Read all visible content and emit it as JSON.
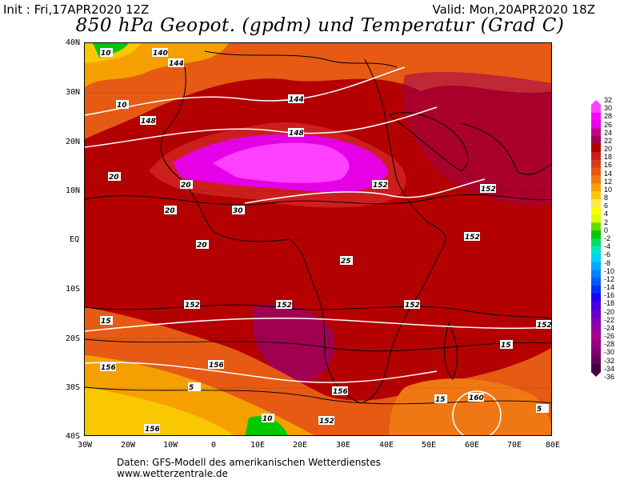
{
  "header": {
    "init": "Init : Fri,17APR2020 12Z",
    "valid": "Valid: Mon,20APR2020 18Z",
    "title": "850 hPa Geopot. (gpdm) und Temperatur (Grad C)"
  },
  "axes": {
    "lat_labels": [
      "40N",
      "30N",
      "20N",
      "10N",
      "EQ",
      "10S",
      "20S",
      "30S",
      "40S"
    ],
    "lon_labels": [
      "30W",
      "20W",
      "10W",
      "0",
      "10E",
      "20E",
      "30E",
      "40E",
      "50E",
      "60E",
      "70E",
      "80E"
    ]
  },
  "legend": {
    "labels": [
      "32",
      "30",
      "28",
      "26",
      "24",
      "22",
      "20",
      "18",
      "16",
      "14",
      "12",
      "10",
      "8",
      "6",
      "4",
      "2",
      "0",
      "-2",
      "-4",
      "-6",
      "-8",
      "-10",
      "-12",
      "-14",
      "-16",
      "-18",
      "-20",
      "-22",
      "-24",
      "-26",
      "-28",
      "-30",
      "-32",
      "-34",
      "-36"
    ],
    "colors": [
      "#ff40ff",
      "#ff00ff",
      "#e600e6",
      "#c8008c",
      "#a00050",
      "#b40000",
      "#cd1e1e",
      "#dc3c1e",
      "#e65a14",
      "#f07814",
      "#f5a000",
      "#fac800",
      "#ffe650",
      "#ffff00",
      "#dcff00",
      "#64dc00",
      "#00c800",
      "#00dc64",
      "#00e6c8",
      "#00d2ff",
      "#00aaff",
      "#0082ff",
      "#005aff",
      "#0032ff",
      "#1e00ff",
      "#4600e6",
      "#6400c8",
      "#8200b4",
      "#9600a0",
      "#aa008c",
      "#960082",
      "#7d006e",
      "#64005a",
      "#460046"
    ]
  },
  "map_labels": {
    "temperature": [
      "20",
      "15",
      "10",
      "5",
      "25",
      "30"
    ],
    "geopotential": [
      "140",
      "144",
      "148",
      "152",
      "156",
      "160"
    ]
  },
  "footer": {
    "line1": "Daten: GFS-Modell des amerikanischen Wetterdienstes",
    "line2": "www.wetterzentrale.de"
  }
}
